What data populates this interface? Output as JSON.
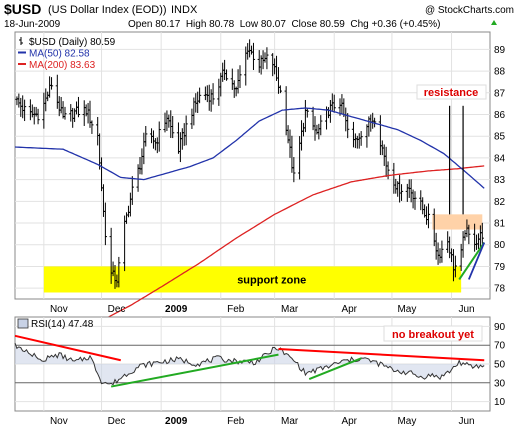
{
  "header": {
    "symbol": "$USD",
    "description": "(US Dollar Index (EOD))",
    "exchange": "INDX",
    "copyright": "@ StockCharts.com",
    "date": "18-Jun-2009",
    "ohlc_line": "Open 80.17  High 80.78  Low 80.07  Close 80.59  Chg +0.36 (+0.45%)",
    "change_arrow": "up"
  },
  "legend": [
    {
      "label": "$USD (Daily) 80.59",
      "color": "#000000"
    },
    {
      "label": "MA(50) 82.58",
      "color": "#2233aa"
    },
    {
      "label": "MA(200) 83.63",
      "color": "#dd2222"
    }
  ],
  "rsi_legend": "RSI(14) 47.48",
  "annotations": {
    "support": "support zone",
    "resistance": "resistance",
    "no_breakout": "no breakout yet"
  },
  "colors": {
    "price_bar": "#000000",
    "ma50": "#2233aa",
    "ma200": "#dd2222",
    "support_zone": "#ffff00",
    "resistance_zone": "#ffd2a8",
    "trend_red": "#ff0000",
    "trend_green": "#22aa22",
    "rsi_line": "#333333",
    "rsi_fill": "#c8d2e6"
  },
  "chart_data": [
    {
      "type": "ohlc",
      "title": "$USD (Daily) 80.59",
      "x_tick_labels": [
        "Nov",
        "Dec",
        "2009",
        "Feb",
        "Mar",
        "Apr",
        "May",
        "Jun"
      ],
      "y_tick_labels": [
        "78",
        "79",
        "80",
        "81",
        "82",
        "83",
        "84",
        "85",
        "86",
        "87",
        "88",
        "89"
      ],
      "ylim": [
        77.5,
        89.8
      ],
      "x_month_starts_days": [
        0,
        30,
        61,
        92,
        120,
        151,
        181,
        212
      ],
      "x_range_days": [
        -15,
        232
      ],
      "series": [
        {
          "name": "$USD (Daily)",
          "last": 80.59,
          "close_anchors_days": [
            -15,
            -8,
            -2,
            4,
            10,
            16,
            22,
            28,
            31,
            34,
            38,
            42,
            46,
            50,
            54,
            58,
            64,
            70,
            76,
            82,
            88,
            94,
            100,
            106,
            112,
            118,
            124,
            130,
            136,
            142,
            148,
            154,
            160,
            166,
            172,
            178,
            184,
            190,
            196,
            201,
            205,
            210,
            213,
            216,
            219,
            222,
            225,
            229
          ],
          "close_anchors_values": [
            86.7,
            86.0,
            86.0,
            87.4,
            85.8,
            86.1,
            86.2,
            85.0,
            81.5,
            78.7,
            78.4,
            80.9,
            82.5,
            83.7,
            85.3,
            84.7,
            85.9,
            84.4,
            86.0,
            87.0,
            86.8,
            88.0,
            87.1,
            89.1,
            88.3,
            88.7,
            86.7,
            83.1,
            86.1,
            85.1,
            86.2,
            86.6,
            84.6,
            85.3,
            85.9,
            83.7,
            82.6,
            82.6,
            81.8,
            81.0,
            79.5,
            80.2,
            79.0,
            79.0,
            80.7,
            80.2,
            80.2,
            80.6
          ]
        },
        {
          "name": "MA(50)",
          "last": 82.58,
          "anchors_days": [
            -15,
            10,
            28,
            40,
            52,
            64,
            76,
            88,
            100,
            112,
            124,
            136,
            148,
            160,
            172,
            184,
            196,
            208,
            220,
            229
          ],
          "anchors_values": [
            84.5,
            84.4,
            83.7,
            83.1,
            83.0,
            83.3,
            83.6,
            84.0,
            84.8,
            85.7,
            86.2,
            86.3,
            86.2,
            85.9,
            85.6,
            85.3,
            84.8,
            84.2,
            83.3,
            82.6
          ]
        },
        {
          "name": "MA(200)",
          "last": 83.63,
          "anchors_days": [
            -15,
            10,
            30,
            45,
            60,
            80,
            100,
            120,
            140,
            160,
            180,
            200,
            215,
            229
          ],
          "anchors_values": [
            74.8,
            75.6,
            76.5,
            77.2,
            78.0,
            79.1,
            80.3,
            81.4,
            82.3,
            82.9,
            83.2,
            83.4,
            83.5,
            83.63
          ]
        }
      ],
      "annotations": [
        {
          "type": "rect",
          "label": "support zone",
          "x_days": [
            0,
            217
          ],
          "y_range": [
            77.8,
            79.0
          ]
        },
        {
          "type": "rect",
          "label": "resistance",
          "x_days": [
            202,
            228
          ],
          "y_range": [
            80.7,
            81.4
          ]
        },
        {
          "type": "line",
          "color": "green",
          "from": [
            216,
            78.4
          ],
          "to": [
            229,
            80.1
          ]
        },
        {
          "type": "line",
          "color": "black",
          "from": [
            211,
            81.4
          ],
          "to": [
            211,
            86.4
          ]
        },
        {
          "type": "line",
          "color": "black",
          "from": [
            218,
            81.4
          ],
          "to": [
            218,
            86.4
          ]
        }
      ]
    },
    {
      "type": "line",
      "title": "RSI(14) 47.48",
      "y_tick_labels": [
        "10",
        "30",
        "50",
        "70",
        "90"
      ],
      "ylim": [
        0,
        100
      ],
      "reference_lines": [
        30,
        70
      ],
      "series": [
        {
          "name": "RSI(14)",
          "last": 47.48,
          "anchors_days": [
            -15,
            -8,
            0,
            8,
            16,
            24,
            30,
            35,
            42,
            50,
            60,
            70,
            80,
            90,
            100,
            110,
            116,
            121,
            126,
            131,
            136,
            146,
            156,
            166,
            176,
            181,
            186,
            191,
            196,
            201,
            206,
            211,
            216,
            222,
            229
          ],
          "anchors_values": [
            70,
            62,
            55,
            60,
            52,
            58,
            32,
            28,
            38,
            48,
            52,
            55,
            50,
            56,
            53,
            52,
            60,
            68,
            60,
            52,
            40,
            46,
            53,
            56,
            49,
            44,
            42,
            40,
            36,
            38,
            36,
            42,
            52,
            47,
            48
          ]
        }
      ],
      "annotations": [
        {
          "type": "line",
          "color": "red",
          "from": [
            -15,
            80
          ],
          "to": [
            40,
            54
          ]
        },
        {
          "type": "line",
          "color": "green",
          "from": [
            35,
            26
          ],
          "to": [
            122,
            60
          ]
        },
        {
          "type": "line",
          "color": "red",
          "from": [
            122,
            66
          ],
          "to": [
            229,
            54
          ]
        },
        {
          "type": "line",
          "color": "green",
          "from": [
            138,
            34
          ],
          "to": [
            165,
            56
          ]
        }
      ]
    }
  ]
}
